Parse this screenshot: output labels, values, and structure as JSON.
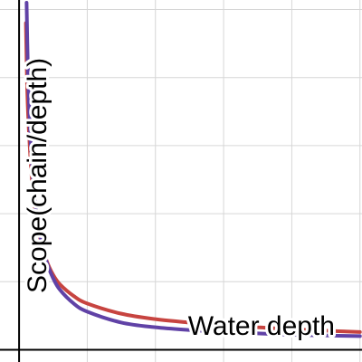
{
  "chart_data": {
    "type": "line",
    "title": "",
    "xlabel": "Water depth",
    "ylabel": "Scope(chain/depth)",
    "x_domain": [
      -0.28,
      5.03
    ],
    "y_domain": [
      -0.18,
      5.14
    ],
    "grid": true,
    "gridline_x": [
      0,
      1,
      2,
      3,
      4,
      5
    ],
    "gridline_y": [
      0,
      1,
      2,
      3,
      4,
      5
    ],
    "legend": "none",
    "series": [
      {
        "color": "#c74440",
        "x": [
          0.1,
          0.12,
          0.15,
          0.2,
          0.25,
          0.3,
          0.4,
          0.5,
          0.6,
          0.8,
          1.0,
          1.5,
          2.0,
          2.5,
          3.0,
          3.5,
          4.0,
          4.5,
          5.0
        ],
        "y": [
          4.8,
          3.8,
          3.1,
          2.35,
          1.95,
          1.68,
          1.32,
          1.1,
          0.96,
          0.79,
          0.68,
          0.53,
          0.45,
          0.4,
          0.36,
          0.33,
          0.3,
          0.28,
          0.26
        ]
      },
      {
        "color": "#6042a6",
        "x": [
          0.11,
          0.13,
          0.16,
          0.2,
          0.25,
          0.3,
          0.4,
          0.5,
          0.6,
          0.8,
          1.0,
          1.5,
          2.0,
          2.5,
          3.0,
          3.5,
          4.0,
          4.5,
          5.0
        ],
        "y": [
          5.1,
          4.1,
          3.25,
          2.55,
          2.05,
          1.72,
          1.3,
          1.05,
          0.88,
          0.68,
          0.56,
          0.4,
          0.33,
          0.29,
          0.26,
          0.24,
          0.22,
          0.21,
          0.2
        ]
      }
    ]
  }
}
